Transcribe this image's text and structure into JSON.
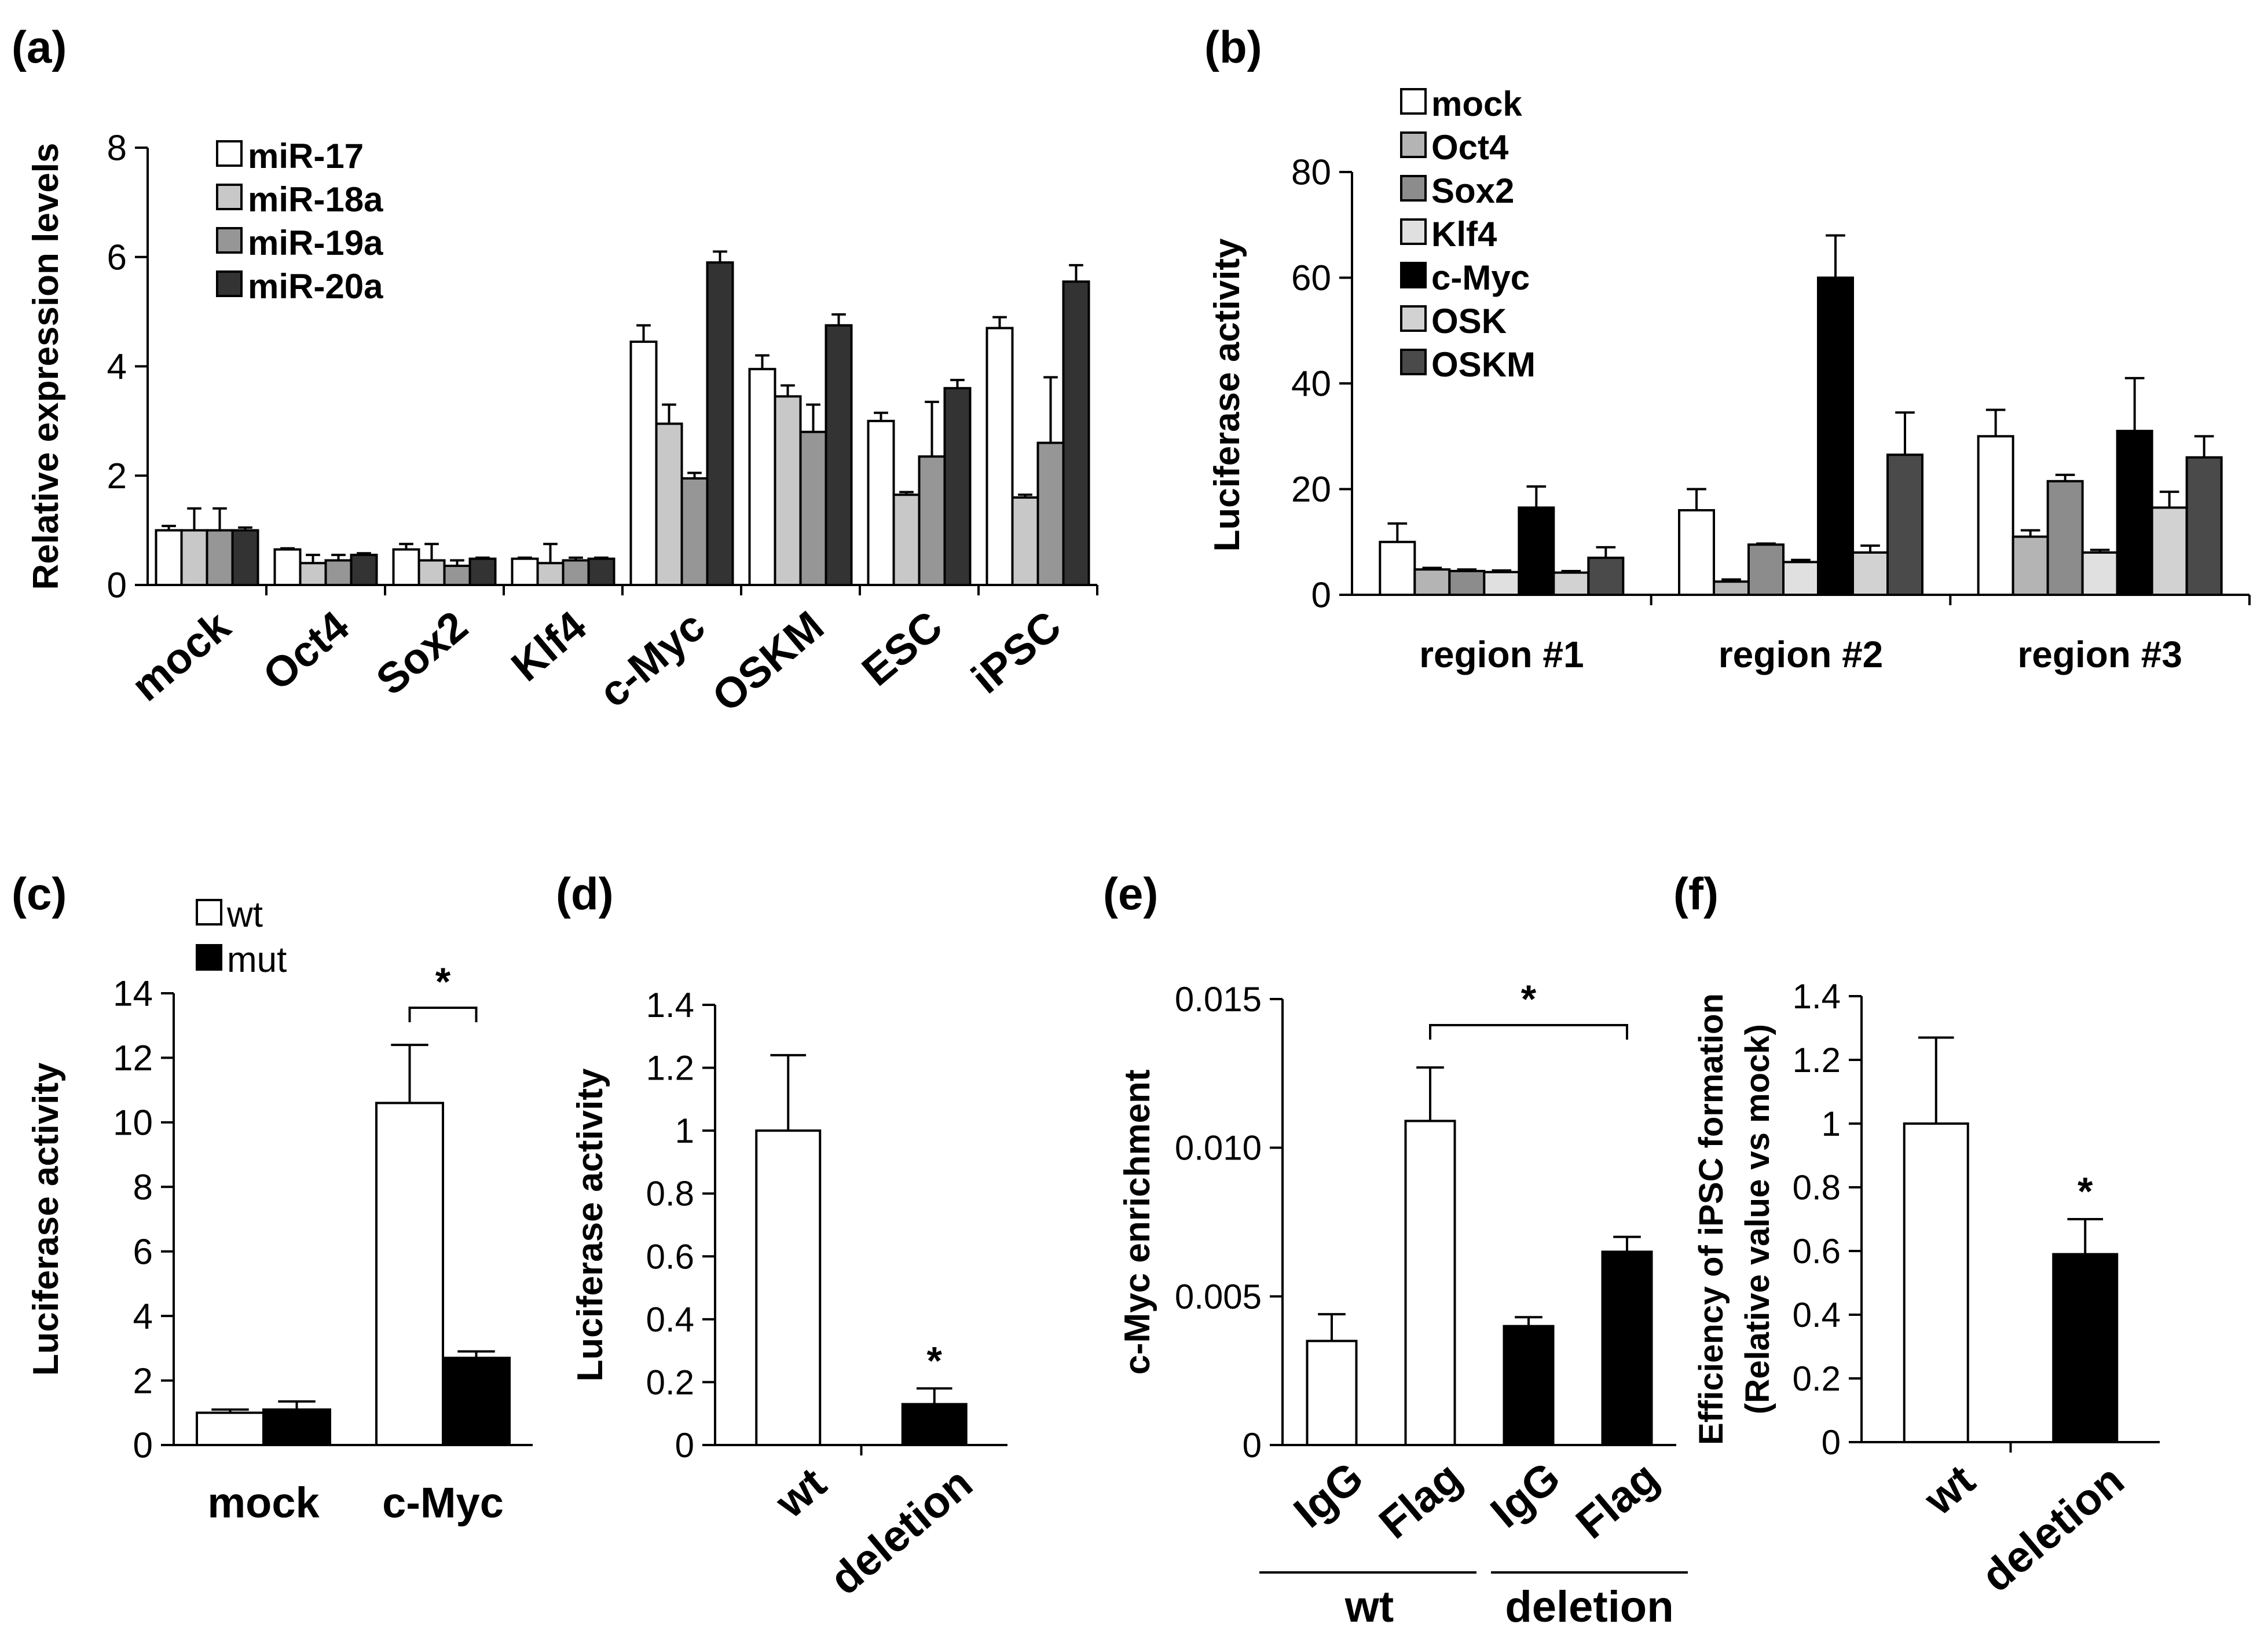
{
  "colors": {
    "white": "#ffffff",
    "light_gray": "#c8c8c8",
    "mid_gray": "#969696",
    "lighter_gray": "#e0e0e0",
    "black": "#000000",
    "dark_gray": "#404040",
    "axis": "#000000"
  },
  "chart_data": [
    {
      "panel": "(a)",
      "type": "bar",
      "title": "",
      "ylabel": "Relative expression levels",
      "ylim": [
        0,
        8
      ],
      "yticks": [
        0,
        2,
        4,
        6,
        8
      ],
      "ytick_labels": [
        "0",
        "2",
        "4",
        "6",
        "8"
      ],
      "categories": [
        "mock",
        "Oct4",
        "Sox2",
        "Klf4",
        "c-Myc",
        "OSKM",
        "ESC",
        "iPSC"
      ],
      "series": [
        {
          "name": "miR-17",
          "color": "#ffffff",
          "values": [
            1.0,
            0.65,
            0.65,
            0.48,
            4.45,
            3.95,
            3.0,
            4.7
          ],
          "errors": [
            0.08,
            0.02,
            0.1,
            0.02,
            0.3,
            0.25,
            0.15,
            0.2
          ]
        },
        {
          "name": "miR-18a",
          "color": "#c8c8c8",
          "values": [
            1.0,
            0.4,
            0.45,
            0.4,
            2.95,
            3.45,
            1.65,
            1.6
          ],
          "errors": [
            0.4,
            0.15,
            0.3,
            0.35,
            0.35,
            0.2,
            0.05,
            0.05
          ]
        },
        {
          "name": "miR-19a",
          "color": "#969696",
          "values": [
            1.0,
            0.45,
            0.35,
            0.45,
            1.95,
            2.8,
            2.35,
            2.6
          ],
          "errors": [
            0.4,
            0.1,
            0.1,
            0.05,
            0.1,
            0.5,
            1.0,
            1.2
          ]
        },
        {
          "name": "miR-20a",
          "color": "#333333",
          "values": [
            1.0,
            0.55,
            0.48,
            0.48,
            5.9,
            4.75,
            3.6,
            5.55
          ],
          "errors": [
            0.05,
            0.03,
            0.02,
            0.02,
            0.2,
            0.2,
            0.15,
            0.3
          ]
        }
      ],
      "legend": "top-left"
    },
    {
      "panel": "(b)",
      "type": "bar",
      "title": "",
      "ylabel": "Luciferase activity",
      "ylim": [
        0,
        80
      ],
      "yticks": [
        0,
        20,
        40,
        60,
        80
      ],
      "ytick_labels": [
        "0",
        "20",
        "40",
        "60",
        "80"
      ],
      "categories": [
        "region #1",
        "region #2",
        "region #3"
      ],
      "series": [
        {
          "name": "mock",
          "color": "#ffffff",
          "values": [
            10,
            16,
            30
          ],
          "errors": [
            3.5,
            4,
            5
          ]
        },
        {
          "name": "Oct4",
          "color": "#b4b4b4",
          "values": [
            4.8,
            2.5,
            11
          ],
          "errors": [
            0.3,
            0.4,
            1.2
          ]
        },
        {
          "name": "Sox2",
          "color": "#8c8c8c",
          "values": [
            4.5,
            9.5,
            21.5
          ],
          "errors": [
            0.3,
            0.2,
            1.2
          ]
        },
        {
          "name": "Klf4",
          "color": "#e0e0e0",
          "values": [
            4.3,
            6.2,
            8
          ],
          "errors": [
            0.3,
            0.4,
            0.5
          ]
        },
        {
          "name": "c-Myc",
          "color": "#000000",
          "values": [
            16.5,
            60,
            31
          ],
          "errors": [
            4,
            8,
            10
          ]
        },
        {
          "name": "OSK",
          "color": "#d2d2d2",
          "values": [
            4.2,
            8,
            16.5
          ],
          "errors": [
            0.3,
            1.3,
            3
          ]
        },
        {
          "name": "OSKM",
          "color": "#4a4a4a",
          "values": [
            7,
            26.5,
            26
          ],
          "errors": [
            2,
            8,
            4
          ]
        }
      ],
      "legend": "top-left"
    },
    {
      "panel": "(c)",
      "type": "bar",
      "ylabel": "Luciferase activity",
      "ylim": [
        0,
        14
      ],
      "yticks": [
        0,
        2,
        4,
        6,
        8,
        10,
        12,
        14
      ],
      "ytick_labels": [
        "0",
        "2",
        "4",
        "6",
        "8",
        "10",
        "12",
        "14"
      ],
      "categories": [
        "mock",
        "c-Myc"
      ],
      "series": [
        {
          "name": "wt",
          "color": "#ffffff",
          "values": [
            1.0,
            10.6
          ],
          "errors": [
            0.1,
            1.8
          ]
        },
        {
          "name": "mut",
          "color": "#000000",
          "values": [
            1.1,
            2.7
          ],
          "errors": [
            0.25,
            0.2
          ]
        }
      ],
      "annotation": "*",
      "legend": "top-left"
    },
    {
      "panel": "(d)",
      "type": "bar",
      "ylabel": "Luciferase activity",
      "ylim": [
        0,
        1.4
      ],
      "yticks": [
        0,
        0.2,
        0.4,
        0.6,
        0.8,
        1.0,
        1.2,
        1.4
      ],
      "ytick_labels": [
        "0",
        "0.2",
        "0.4",
        "0.6",
        "0.8",
        "1",
        "1.2",
        "1.4"
      ],
      "categories": [
        "wt",
        "deletion"
      ],
      "values": [
        1.0,
        0.13
      ],
      "errors": [
        0.24,
        0.05
      ],
      "colors": [
        "#ffffff",
        "#000000"
      ],
      "annotation": "*"
    },
    {
      "panel": "(e)",
      "type": "bar",
      "ylabel": "c-Myc enrichment",
      "ylim": [
        0,
        0.015
      ],
      "yticks": [
        0,
        0.005,
        0.01,
        0.015
      ],
      "ytick_labels": [
        "0",
        "0.005",
        "0.010",
        "0.015"
      ],
      "categories": [
        "IgG",
        "Flag",
        "IgG",
        "Flag"
      ],
      "groups": [
        "wt",
        "deletion"
      ],
      "values": [
        0.0035,
        0.0109,
        0.004,
        0.0065
      ],
      "errors": [
        0.0009,
        0.0018,
        0.0003,
        0.0005
      ],
      "colors": [
        "#ffffff",
        "#ffffff",
        "#000000",
        "#000000"
      ],
      "annotation": "*"
    },
    {
      "panel": "(f)",
      "type": "bar",
      "ylabel_lines": [
        "Efficiency of iPSC formation",
        "(Relative value vs mock)"
      ],
      "ylim": [
        0,
        1.4
      ],
      "yticks": [
        0,
        0.2,
        0.4,
        0.6,
        0.8,
        1.0,
        1.2,
        1.4
      ],
      "ytick_labels": [
        "0",
        "0.2",
        "0.4",
        "0.6",
        "0.8",
        "1",
        "1.2",
        "1.4"
      ],
      "categories": [
        "wt",
        "deletion"
      ],
      "values": [
        1.0,
        0.59
      ],
      "errors": [
        0.27,
        0.11
      ],
      "colors": [
        "#ffffff",
        "#000000"
      ],
      "annotation": "*"
    }
  ]
}
